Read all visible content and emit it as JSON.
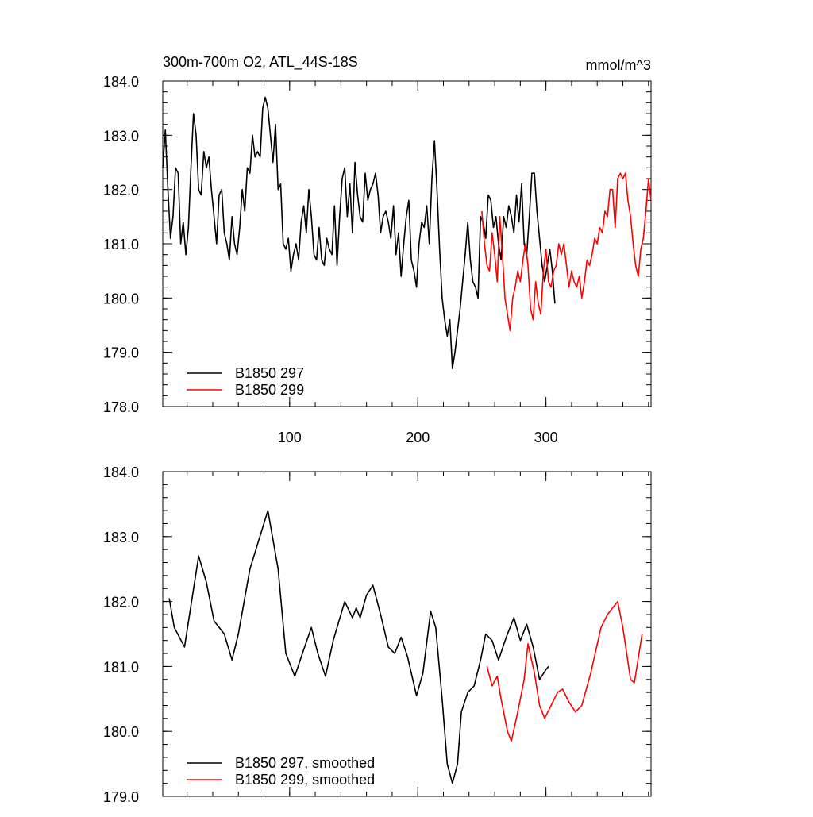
{
  "chart_data": [
    {
      "type": "line",
      "title": "300m-700m O2, ATL_44S-18S",
      "units_label": "mmol/m^3",
      "xlim": [
        1,
        382
      ],
      "xticks": [
        100,
        200,
        300
      ],
      "xtick_labels": true,
      "ylim": [
        178,
        184
      ],
      "yticks": [
        {
          "value": 178,
          "label": "178.0"
        },
        {
          "value": 179,
          "label": "179.0"
        },
        {
          "value": 180,
          "label": "180.0"
        },
        {
          "value": 181,
          "label": "181.0"
        },
        {
          "value": 182,
          "label": "182.0"
        },
        {
          "value": 183,
          "label": "183.0"
        },
        {
          "value": 184,
          "label": "184.0"
        }
      ],
      "legend": "lower left",
      "series": [
        {
          "name": "B1850 297",
          "color": "#000000",
          "x": [
            1,
            3,
            5,
            7,
            9,
            11,
            13,
            15,
            17,
            19,
            21,
            23,
            25,
            27,
            29,
            31,
            33,
            35,
            37,
            39,
            41,
            43,
            45,
            47,
            49,
            51,
            53,
            55,
            57,
            59,
            61,
            63,
            65,
            67,
            69,
            71,
            73,
            75,
            77,
            79,
            81,
            83,
            85,
            87,
            89,
            91,
            93,
            95,
            97,
            99,
            101,
            103,
            105,
            107,
            109,
            111,
            113,
            115,
            117,
            119,
            121,
            123,
            125,
            127,
            129,
            131,
            133,
            135,
            137,
            139,
            141,
            143,
            145,
            147,
            149,
            151,
            153,
            155,
            157,
            159,
            161,
            163,
            165,
            167,
            169,
            171,
            173,
            175,
            177,
            179,
            181,
            183,
            185,
            187,
            189,
            191,
            193,
            195,
            197,
            199,
            201,
            203,
            205,
            207,
            209,
            211,
            213,
            215,
            217,
            219,
            221,
            223,
            225,
            227,
            229,
            231,
            233,
            235,
            237,
            239,
            241,
            243,
            245,
            247,
            249,
            251,
            253,
            255,
            257,
            259,
            261,
            263,
            265,
            267,
            269,
            271,
            273,
            275,
            277,
            279,
            281,
            283,
            285,
            287,
            289,
            291,
            293,
            295,
            297,
            299,
            301,
            303,
            305,
            307
          ],
          "values": [
            182.4,
            183.1,
            182.0,
            181.1,
            181.5,
            182.4,
            182.3,
            181.0,
            181.4,
            180.8,
            181.3,
            182.4,
            183.4,
            183.0,
            182.0,
            181.9,
            182.7,
            182.4,
            182.6,
            182.0,
            181.5,
            181.0,
            181.9,
            182.0,
            181.2,
            181.0,
            180.7,
            181.5,
            181.0,
            180.8,
            181.3,
            182.0,
            181.6,
            182.4,
            182.3,
            183.0,
            182.6,
            182.7,
            182.6,
            183.5,
            183.7,
            183.5,
            183.0,
            182.5,
            183.2,
            182.0,
            182.1,
            181.0,
            180.9,
            181.1,
            180.5,
            180.8,
            181.0,
            180.7,
            181.4,
            181.7,
            181.2,
            182.0,
            181.5,
            180.8,
            180.7,
            181.3,
            180.7,
            180.6,
            181.1,
            180.9,
            180.8,
            181.7,
            180.6,
            181.5,
            182.2,
            182.4,
            181.5,
            182.1,
            181.2,
            182.5,
            181.9,
            181.5,
            181.4,
            182.3,
            181.8,
            182.0,
            182.1,
            182.3,
            181.9,
            181.2,
            181.5,
            181.6,
            181.4,
            181.1,
            181.7,
            180.8,
            181.2,
            180.4,
            181.0,
            181.5,
            181.8,
            180.7,
            180.5,
            180.2,
            181.0,
            181.4,
            181.3,
            181.7,
            181.0,
            182.2,
            182.9,
            182.0,
            180.9,
            180.0,
            179.6,
            179.3,
            179.6,
            178.7,
            179.0,
            179.4,
            179.8,
            180.3,
            180.8,
            181.4,
            180.7,
            180.3,
            180.2,
            180.0,
            181.5,
            181.4,
            181.1,
            181.9,
            181.8,
            181.3,
            181.5,
            181.0,
            180.7,
            181.5,
            181.3,
            181.7,
            181.5,
            181.2,
            181.9,
            181.4,
            182.1,
            181.0,
            180.8,
            181.5,
            182.3,
            182.3,
            181.6,
            181.1,
            180.6,
            180.3,
            180.6,
            180.9,
            180.5,
            179.9
          ]
        },
        {
          "name": "B1850 299",
          "color": "#ff0000",
          "x": [
            250,
            252,
            254,
            256,
            258,
            260,
            262,
            264,
            266,
            268,
            270,
            272,
            274,
            276,
            278,
            280,
            282,
            284,
            286,
            288,
            290,
            292,
            294,
            296,
            298,
            300,
            302,
            304,
            306,
            308,
            310,
            312,
            314,
            316,
            318,
            320,
            322,
            324,
            326,
            328,
            330,
            332,
            334,
            336,
            338,
            340,
            342,
            344,
            346,
            348,
            350,
            352,
            354,
            356,
            358,
            360,
            362,
            364,
            366,
            368,
            370,
            372,
            374,
            376,
            378,
            380,
            382
          ],
          "values": [
            181.6,
            181.0,
            180.6,
            180.5,
            181.2,
            180.8,
            180.3,
            181.5,
            180.8,
            180.0,
            179.7,
            179.4,
            180.0,
            180.2,
            180.5,
            180.3,
            180.7,
            181.0,
            180.6,
            179.8,
            179.6,
            180.3,
            179.9,
            179.7,
            180.5,
            180.9,
            180.3,
            180.2,
            180.5,
            180.6,
            181.0,
            180.8,
            181.0,
            180.6,
            180.2,
            180.5,
            180.3,
            180.2,
            180.4,
            180.0,
            180.3,
            180.7,
            180.6,
            180.8,
            181.1,
            181.0,
            181.3,
            181.2,
            181.6,
            181.5,
            182.0,
            182.0,
            181.3,
            182.2,
            182.3,
            182.2,
            182.3,
            181.8,
            181.5,
            181.0,
            180.6,
            180.4,
            180.9,
            181.1,
            181.6,
            182.2,
            181.8
          ]
        }
      ]
    },
    {
      "type": "line",
      "xlim": [
        1,
        382
      ],
      "xticks": [
        100,
        200,
        300
      ],
      "xtick_labels": false,
      "ylim": [
        179,
        184
      ],
      "yticks": [
        {
          "value": 179,
          "label": "179.0"
        },
        {
          "value": 180,
          "label": "180.0"
        },
        {
          "value": 181,
          "label": "181.0"
        },
        {
          "value": 182,
          "label": "182.0"
        },
        {
          "value": 183,
          "label": "183.0"
        },
        {
          "value": 184,
          "label": "184.0"
        }
      ],
      "legend": "lower left",
      "series": [
        {
          "name": "B1850 297, smoothed",
          "color": "#000000",
          "x": [
            6,
            10,
            18,
            29,
            35,
            41,
            49,
            55,
            60,
            69,
            83,
            91,
            97,
            104,
            110,
            117,
            122,
            128,
            134,
            143,
            149,
            152,
            155,
            160,
            165,
            171,
            177,
            182,
            187,
            192,
            199,
            204,
            210,
            214,
            219,
            223,
            227,
            231,
            234,
            239,
            244,
            249,
            253,
            258,
            263,
            269,
            275,
            280,
            285,
            290,
            295,
            300,
            302
          ],
          "values": [
            182.05,
            181.6,
            181.3,
            182.7,
            182.3,
            181.7,
            181.5,
            181.1,
            181.5,
            182.5,
            183.4,
            182.5,
            181.2,
            180.85,
            181.2,
            181.6,
            181.2,
            180.85,
            181.4,
            182.0,
            181.75,
            181.9,
            181.75,
            182.1,
            182.25,
            181.8,
            181.3,
            181.2,
            181.45,
            181.15,
            180.55,
            180.9,
            181.85,
            181.6,
            180.5,
            179.5,
            179.2,
            179.5,
            180.3,
            180.6,
            180.7,
            181.1,
            181.5,
            181.4,
            181.1,
            181.45,
            181.75,
            181.4,
            181.65,
            181.3,
            180.8,
            180.95,
            181.0
          ]
        },
        {
          "name": "B1850 299, smoothed",
          "color": "#ff0000",
          "x": [
            254,
            258,
            262,
            265,
            270,
            273,
            278,
            283,
            286,
            291,
            295,
            299,
            304,
            309,
            313,
            318,
            323,
            328,
            335,
            343,
            348,
            356,
            360,
            366,
            369,
            375
          ],
          "values": [
            181.0,
            180.7,
            180.85,
            180.5,
            180.0,
            179.85,
            180.3,
            180.8,
            181.35,
            180.9,
            180.4,
            180.2,
            180.4,
            180.6,
            180.65,
            180.45,
            180.3,
            180.4,
            180.9,
            181.6,
            181.8,
            182.0,
            181.6,
            180.8,
            180.75,
            181.5
          ]
        }
      ]
    }
  ]
}
